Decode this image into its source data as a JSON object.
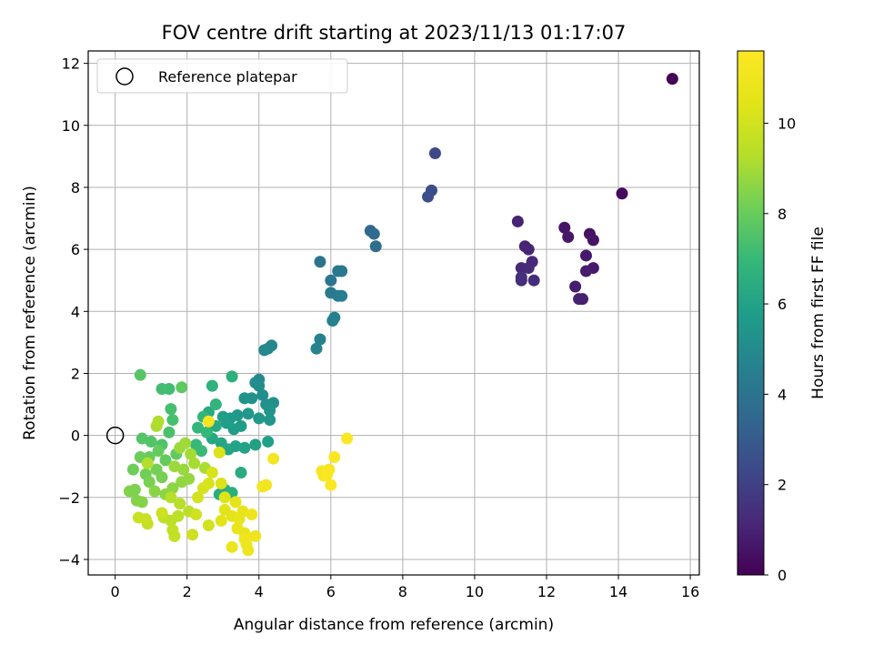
{
  "chart_data": {
    "type": "scatter",
    "title": "FOV centre drift starting at 2023/11/13 01:17:07",
    "xlabel": "Angular distance from reference (arcmin)",
    "ylabel": "Rotation from reference (arcmin)",
    "xlim": [
      -0.75,
      16.25
    ],
    "ylim": [
      -4.5,
      12.4
    ],
    "x_ticks": [
      0,
      2,
      4,
      6,
      8,
      10,
      12,
      14,
      16
    ],
    "y_ticks": [
      -4,
      -2,
      0,
      2,
      4,
      6,
      8,
      10,
      12
    ],
    "grid": true,
    "legend": {
      "placement": "top-left",
      "entries": [
        {
          "label": "Reference platepar",
          "marker": "open-circle"
        }
      ]
    },
    "reference_point": {
      "x": 0,
      "y": 0
    },
    "colorbar": {
      "label": "Hours from first FF file",
      "range": [
        0,
        11.6
      ],
      "ticks": [
        0,
        2,
        4,
        6,
        8,
        10
      ],
      "colormap": "viridis"
    },
    "series": [
      {
        "marker": "filled-circle",
        "points": [
          [
            15.5,
            11.5,
            0.05
          ],
          [
            14.1,
            7.8,
            0.3
          ],
          [
            13.2,
            6.5,
            0.5
          ],
          [
            13.3,
            6.3,
            0.55
          ],
          [
            12.5,
            6.7,
            0.6
          ],
          [
            12.6,
            6.4,
            0.65
          ],
          [
            13.1,
            5.8,
            0.7
          ],
          [
            13.3,
            5.4,
            0.75
          ],
          [
            13.1,
            5.3,
            0.8
          ],
          [
            12.8,
            4.8,
            0.85
          ],
          [
            13.0,
            4.4,
            0.9
          ],
          [
            12.9,
            4.4,
            0.95
          ],
          [
            11.2,
            6.9,
            1.0
          ],
          [
            11.4,
            6.1,
            1.05
          ],
          [
            11.5,
            6.0,
            1.1
          ],
          [
            11.6,
            5.6,
            1.15
          ],
          [
            11.3,
            5.4,
            1.2
          ],
          [
            11.5,
            5.4,
            1.25
          ],
          [
            11.3,
            5.0,
            1.3
          ],
          [
            11.65,
            5.0,
            1.35
          ],
          [
            11.3,
            5.1,
            1.4
          ],
          [
            8.9,
            9.1,
            2.3
          ],
          [
            8.8,
            7.9,
            2.5
          ],
          [
            8.7,
            7.7,
            2.6
          ],
          [
            7.1,
            6.6,
            3.5
          ],
          [
            7.2,
            6.5,
            3.6
          ],
          [
            7.25,
            6.1,
            3.7
          ],
          [
            5.7,
            5.6,
            4.0
          ],
          [
            6.0,
            5.0,
            4.1
          ],
          [
            6.2,
            5.3,
            4.2
          ],
          [
            6.3,
            5.3,
            4.25
          ],
          [
            6.0,
            4.6,
            4.3
          ],
          [
            6.2,
            4.5,
            4.35
          ],
          [
            6.3,
            4.5,
            4.4
          ],
          [
            6.1,
            3.8,
            4.5
          ],
          [
            6.05,
            3.7,
            4.55
          ],
          [
            5.7,
            3.1,
            4.6
          ],
          [
            5.6,
            2.8,
            4.7
          ],
          [
            4.35,
            2.9,
            4.8
          ],
          [
            4.25,
            2.8,
            4.85
          ],
          [
            4.15,
            2.75,
            4.9
          ],
          [
            4.0,
            1.8,
            5.0
          ],
          [
            3.9,
            1.7,
            5.05
          ],
          [
            4.0,
            1.6,
            5.1
          ],
          [
            4.1,
            1.3,
            5.15
          ],
          [
            4.4,
            1.05,
            5.2
          ],
          [
            4.2,
            1.0,
            5.25
          ],
          [
            3.8,
            1.2,
            5.3
          ],
          [
            3.6,
            1.2,
            5.35
          ],
          [
            4.3,
            0.8,
            5.4
          ],
          [
            4.3,
            0.5,
            5.45
          ],
          [
            4.0,
            0.55,
            5.5
          ],
          [
            3.7,
            0.7,
            5.55
          ],
          [
            3.4,
            0.65,
            5.6
          ],
          [
            3.2,
            0.55,
            5.65
          ],
          [
            3.5,
            0.3,
            5.7
          ],
          [
            3.3,
            0.2,
            5.75
          ],
          [
            3.1,
            0.4,
            5.8
          ],
          [
            3.0,
            0.6,
            5.85
          ],
          [
            4.25,
            -0.2,
            5.9
          ],
          [
            3.9,
            -0.3,
            5.95
          ],
          [
            3.6,
            -0.4,
            6.0
          ],
          [
            3.35,
            -0.35,
            6.05
          ],
          [
            3.15,
            -0.45,
            6.1
          ],
          [
            2.95,
            -0.25,
            6.15
          ],
          [
            2.7,
            -0.1,
            6.2
          ],
          [
            2.8,
            0.3,
            6.25
          ],
          [
            2.6,
            0.75,
            6.3
          ],
          [
            3.5,
            -1.2,
            6.4
          ],
          [
            3.05,
            -1.75,
            6.45
          ],
          [
            2.9,
            -1.9,
            6.5
          ],
          [
            3.25,
            -1.85,
            6.55
          ],
          [
            3.25,
            1.9,
            6.6
          ],
          [
            2.7,
            1.6,
            6.7
          ],
          [
            2.8,
            1.0,
            6.8
          ],
          [
            2.45,
            0.6,
            6.85
          ],
          [
            2.3,
            0.25,
            6.9
          ],
          [
            2.55,
            0.1,
            6.95
          ],
          [
            2.25,
            -0.3,
            7.0
          ],
          [
            2.4,
            -0.5,
            7.05
          ],
          [
            1.5,
            1.5,
            7.2
          ],
          [
            1.3,
            1.5,
            7.25
          ],
          [
            1.55,
            0.85,
            7.3
          ],
          [
            1.6,
            0.5,
            7.35
          ],
          [
            1.5,
            0.1,
            7.4
          ],
          [
            1.3,
            -0.3,
            7.5
          ],
          [
            1.0,
            -0.2,
            7.55
          ],
          [
            0.75,
            -0.1,
            7.6
          ],
          [
            0.7,
            1.95,
            7.65
          ],
          [
            1.85,
            1.55,
            7.8
          ],
          [
            1.7,
            -0.6,
            7.85
          ],
          [
            1.4,
            -0.8,
            7.9
          ],
          [
            1.2,
            -0.5,
            7.95
          ],
          [
            0.95,
            -0.7,
            8.0
          ],
          [
            0.7,
            -0.7,
            8.05
          ],
          [
            0.5,
            -1.1,
            8.1
          ],
          [
            0.85,
            -1.25,
            8.15
          ],
          [
            1.15,
            -1.1,
            8.2
          ],
          [
            1.3,
            -1.35,
            8.25
          ],
          [
            0.95,
            -1.5,
            8.3
          ],
          [
            0.55,
            -1.75,
            8.35
          ],
          [
            0.4,
            -1.8,
            8.4
          ],
          [
            0.6,
            -2.1,
            8.45
          ],
          [
            0.75,
            -2.15,
            8.5
          ],
          [
            1.1,
            -1.8,
            8.55
          ],
          [
            1.4,
            -1.9,
            8.6
          ],
          [
            1.6,
            -1.7,
            8.65
          ],
          [
            1.85,
            -1.5,
            8.7
          ],
          [
            2.05,
            -1.4,
            8.75
          ],
          [
            1.9,
            -1.1,
            8.8
          ],
          [
            1.65,
            -1.0,
            8.85
          ],
          [
            1.8,
            -0.4,
            8.9
          ],
          [
            1.95,
            -0.25,
            8.95
          ],
          [
            2.1,
            -0.6,
            9.0
          ],
          [
            2.2,
            -0.9,
            9.05
          ],
          [
            2.5,
            -1.05,
            9.1
          ],
          [
            1.15,
            0.3,
            9.15
          ],
          [
            1.2,
            0.45,
            9.2
          ],
          [
            0.9,
            -0.9,
            9.25
          ],
          [
            1.55,
            -2.0,
            9.3
          ],
          [
            1.8,
            -2.2,
            9.35
          ],
          [
            2.05,
            -2.45,
            9.4
          ],
          [
            1.75,
            -2.6,
            9.45
          ],
          [
            1.55,
            -2.75,
            9.5
          ],
          [
            1.35,
            -2.65,
            9.55
          ],
          [
            1.6,
            -3.05,
            9.6
          ],
          [
            1.65,
            -3.25,
            9.65
          ],
          [
            0.9,
            -2.85,
            9.7
          ],
          [
            0.85,
            -2.7,
            9.75
          ],
          [
            0.65,
            -2.65,
            9.8
          ],
          [
            1.3,
            -2.5,
            9.85
          ],
          [
            2.15,
            -3.2,
            9.9
          ],
          [
            2.25,
            -2.55,
            9.95
          ],
          [
            2.6,
            -2.9,
            10.0
          ],
          [
            2.3,
            -2.0,
            10.05
          ],
          [
            2.45,
            -1.7,
            10.1
          ],
          [
            2.6,
            -1.55,
            10.15
          ],
          [
            2.7,
            -1.2,
            10.2
          ],
          [
            2.95,
            -1.55,
            10.25
          ],
          [
            2.9,
            -0.55,
            10.3
          ],
          [
            3.05,
            -2.0,
            10.35
          ],
          [
            3.05,
            -2.4,
            10.4
          ],
          [
            2.95,
            -2.75,
            10.45
          ],
          [
            3.25,
            -2.6,
            10.5
          ],
          [
            3.35,
            -2.15,
            10.55
          ],
          [
            3.55,
            -2.45,
            10.6
          ],
          [
            3.45,
            -2.7,
            10.65
          ],
          [
            3.4,
            -3.0,
            10.7
          ],
          [
            3.6,
            -3.15,
            10.75
          ],
          [
            3.25,
            -3.6,
            10.8
          ],
          [
            3.65,
            -3.5,
            10.85
          ],
          [
            3.7,
            -3.7,
            10.9
          ],
          [
            3.9,
            -3.25,
            10.95
          ],
          [
            3.8,
            -2.55,
            11.0
          ],
          [
            3.6,
            -3.35,
            11.05
          ],
          [
            4.1,
            -1.65,
            11.1
          ],
          [
            4.2,
            -1.6,
            11.15
          ],
          [
            4.4,
            -0.75,
            11.2
          ],
          [
            2.6,
            0.45,
            11.25
          ],
          [
            5.75,
            -1.15,
            11.3
          ],
          [
            5.8,
            -1.3,
            11.35
          ],
          [
            5.95,
            -1.1,
            11.4
          ],
          [
            5.9,
            -1.25,
            11.42
          ],
          [
            6.1,
            -0.7,
            11.45
          ],
          [
            6.0,
            -1.6,
            11.48
          ],
          [
            6.45,
            -0.1,
            11.55
          ]
        ]
      }
    ]
  }
}
